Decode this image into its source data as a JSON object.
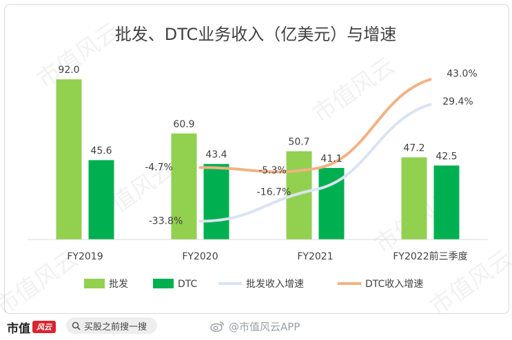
{
  "chart_data": {
    "type": "bar",
    "title": "批发、DTC业务收入（亿美元）与增速",
    "categories": [
      "FY2019",
      "FY2020",
      "FY2021",
      "FY2022前三季度"
    ],
    "bar_series": [
      {
        "name": "批发",
        "values": [
          92.0,
          60.9,
          50.7,
          47.2
        ],
        "labels": [
          "92.0",
          "60.9",
          "50.7",
          "47.2"
        ],
        "color": "#92d050"
      },
      {
        "name": "DTC",
        "values": [
          45.6,
          43.4,
          41.1,
          42.5
        ],
        "labels": [
          "45.6",
          "43.4",
          "41.1",
          "42.5"
        ],
        "color": "#00b050"
      }
    ],
    "line_series": [
      {
        "name": "批发收入增速",
        "values": [
          null,
          -33.8,
          -16.7,
          29.4
        ],
        "labels": [
          "",
          "-33.8%",
          "-16.7%",
          "29.4%"
        ],
        "color": "#dae3f3",
        "unit": "%"
      },
      {
        "name": "DTC收入增速",
        "values": [
          null,
          -4.7,
          -5.3,
          43.0
        ],
        "labels": [
          "",
          "-4.7%",
          "-5.3%",
          "43.0%"
        ],
        "color": "#f4b183",
        "unit": "%"
      }
    ],
    "bar_axis_range": [
      0,
      100
    ],
    "line_axis_range": [
      -40,
      45
    ],
    "legend": "bottom",
    "grid": false
  },
  "watermark": "市值风云",
  "footer": {
    "brand_text": "市值",
    "brand_seal": "风云",
    "search_placeholder": "买股之前搜一搜",
    "weibo_text": "@市值风云APP"
  },
  "icons": {
    "search": "search-icon",
    "weibo": "weibo-icon"
  }
}
